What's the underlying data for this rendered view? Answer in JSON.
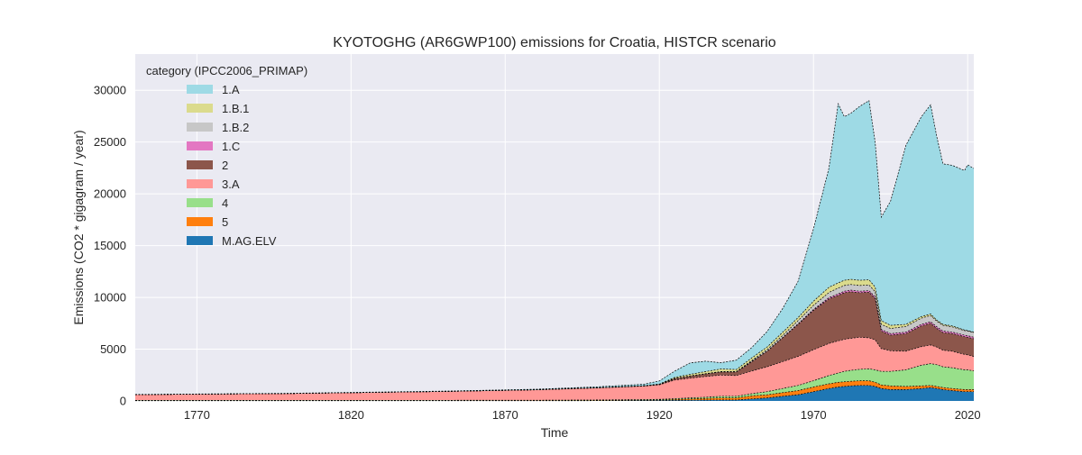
{
  "chart_data": {
    "type": "area",
    "stacked": true,
    "title": "KYOTOGHG (AR6GWP100) emissions for Croatia, HISTCR scenario",
    "xlabel": "Time",
    "ylabel": "Emissions (CO2 * gigagram / year)",
    "xlim": [
      1750,
      2022
    ],
    "ylim": [
      0,
      33500
    ],
    "xticks": [
      1770,
      1820,
      1870,
      1920,
      1970,
      2020
    ],
    "yticks": [
      0,
      5000,
      10000,
      15000,
      20000,
      25000,
      30000
    ],
    "grid": true,
    "legend": {
      "title": "category (IPCC2006_PRIMAP)",
      "position": "top-left"
    },
    "x": [
      1750,
      1800,
      1850,
      1880,
      1900,
      1915,
      1920,
      1925,
      1930,
      1935,
      1940,
      1945,
      1950,
      1955,
      1960,
      1965,
      1970,
      1975,
      1978,
      1980,
      1982,
      1985,
      1988,
      1990,
      1992,
      1995,
      2000,
      2005,
      2008,
      2010,
      2012,
      2015,
      2019,
      2020,
      2022
    ],
    "series": [
      {
        "name": "M.AG.ELV",
        "color": "#1f77b4",
        "values": [
          20,
          20,
          20,
          20,
          30,
          40,
          50,
          60,
          80,
          90,
          100,
          100,
          200,
          300,
          450,
          600,
          900,
          1200,
          1350,
          1400,
          1450,
          1500,
          1500,
          1400,
          1200,
          1100,
          1100,
          1200,
          1300,
          1200,
          1100,
          1000,
          900,
          900,
          900
        ]
      },
      {
        "name": "5",
        "color": "#ff7f0e",
        "values": [
          10,
          10,
          10,
          20,
          30,
          40,
          50,
          80,
          120,
          150,
          200,
          200,
          300,
          300,
          350,
          400,
          450,
          450,
          450,
          450,
          450,
          450,
          450,
          400,
          350,
          350,
          300,
          250,
          200,
          200,
          200,
          200,
          200,
          200,
          200
        ]
      },
      {
        "name": "4",
        "color": "#98df8a",
        "values": [
          30,
          30,
          30,
          30,
          40,
          50,
          60,
          80,
          100,
          120,
          150,
          150,
          200,
          300,
          400,
          500,
          600,
          800,
          900,
          1000,
          1050,
          1100,
          1150,
          1200,
          1300,
          1400,
          1600,
          2000,
          2100,
          2100,
          2000,
          2000,
          1900,
          1900,
          1800
        ]
      },
      {
        "name": "3.A",
        "color": "#ff9896",
        "values": [
          550,
          650,
          850,
          1000,
          1150,
          1300,
          1400,
          1800,
          1900,
          2000,
          2050,
          2000,
          2200,
          2400,
          2600,
          2800,
          3000,
          3100,
          3100,
          3100,
          3100,
          3100,
          3000,
          2900,
          2200,
          2000,
          1800,
          1800,
          1800,
          1700,
          1600,
          1600,
          1500,
          1450,
          1400
        ]
      },
      {
        "name": "2",
        "color": "#8c564b",
        "values": [
          0,
          0,
          0,
          10,
          20,
          30,
          50,
          150,
          200,
          250,
          300,
          350,
          900,
          1500,
          2300,
          3100,
          3800,
          4300,
          4400,
          4500,
          4500,
          4300,
          4400,
          4000,
          1700,
          1500,
          1700,
          2000,
          2100,
          1800,
          1700,
          1700,
          1700,
          1700,
          1700
        ]
      },
      {
        "name": "1.C",
        "color": "#e377c2",
        "values": [
          0,
          0,
          0,
          0,
          0,
          0,
          0,
          0,
          0,
          0,
          0,
          0,
          10,
          20,
          30,
          50,
          80,
          120,
          150,
          150,
          150,
          150,
          150,
          150,
          150,
          150,
          150,
          150,
          150,
          150,
          150,
          150,
          150,
          150,
          150
        ]
      },
      {
        "name": "1.B.2",
        "color": "#c7c7c7",
        "values": [
          0,
          0,
          0,
          0,
          0,
          0,
          0,
          10,
          20,
          30,
          40,
          40,
          100,
          150,
          200,
          300,
          400,
          500,
          550,
          550,
          550,
          550,
          550,
          500,
          500,
          500,
          550,
          600,
          600,
          550,
          550,
          500,
          450,
          450,
          450
        ]
      },
      {
        "name": "1.B.1",
        "color": "#dbdb8d",
        "values": [
          0,
          0,
          0,
          0,
          0,
          10,
          20,
          100,
          150,
          200,
          250,
          200,
          250,
          250,
          300,
          300,
          400,
          500,
          500,
          500,
          500,
          500,
          500,
          450,
          350,
          300,
          200,
          150,
          150,
          100,
          100,
          100,
          50,
          50,
          50
        ]
      },
      {
        "name": "1.A",
        "color": "#9edae5",
        "values": [
          20,
          30,
          40,
          50,
          100,
          150,
          300,
          600,
          1100,
          1000,
          600,
          900,
          1000,
          1500,
          2300,
          3500,
          7000,
          11500,
          17300,
          15800,
          16000,
          16800,
          17300,
          14000,
          10000,
          12000,
          17300,
          19300,
          20200,
          17700,
          15500,
          15500,
          15400,
          16000,
          15800
        ]
      }
    ]
  }
}
